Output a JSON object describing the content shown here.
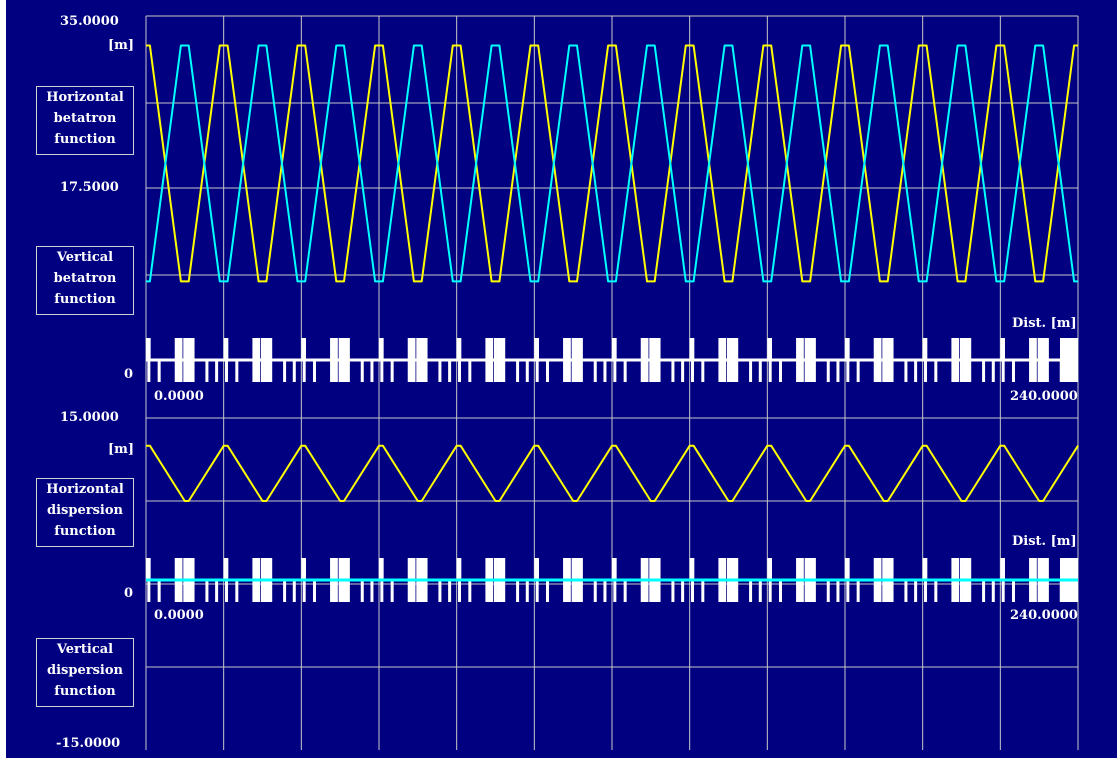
{
  "colors": {
    "background": "#000080",
    "grid": "#c8c8c8",
    "horizontal_series": "#ffff00",
    "vertical_series": "#00ffff",
    "lattice": "#ffffff"
  },
  "chart_data": [
    {
      "type": "line",
      "panel": "betatron",
      "ylim": [
        0,
        35
      ],
      "xlim": [
        0,
        240
      ],
      "y_ticks": {
        "top": "35.0000",
        "mid": "17.5000",
        "bottom": "0"
      },
      "unit": "[m]",
      "x_axis_label": "Dist. [m]",
      "x_ticks": {
        "start": "0.0000",
        "end": "240.0000"
      },
      "legend": [
        {
          "text": "Horizontal\nbetatron\nfunction",
          "color": "#ffff00"
        },
        {
          "text": "Vertical\nbetatron\nfunction",
          "color": "#00ffff"
        }
      ],
      "cells": 12,
      "cell_length": 20,
      "series": [
        {
          "id": "beta_x",
          "color": "#ffff00",
          "x": [
            0,
            1,
            5,
            9,
            10,
            11,
            15,
            19,
            20
          ],
          "y": [
            32,
            32,
            20,
            8,
            8,
            8,
            20,
            32,
            32
          ]
        },
        {
          "id": "beta_y",
          "color": "#00ffff",
          "x": [
            0,
            1,
            5,
            9,
            10,
            11,
            15,
            19,
            20
          ],
          "y": [
            8,
            8,
            20,
            32,
            32,
            32,
            20,
            8,
            8
          ]
        }
      ]
    },
    {
      "type": "line",
      "panel": "dispersion",
      "ylim": [
        -15,
        15
      ],
      "xlim": [
        0,
        240
      ],
      "y_ticks": {
        "top": "15.0000",
        "bottom": "-15.0000"
      },
      "unit": "[m]",
      "x_axis_label": "Dist. [m]",
      "x_ticks": {
        "start": "0.0000",
        "end": "240.0000"
      },
      "legend": [
        {
          "text": "Horizontal\ndispersion\nfunction",
          "color": "#ffff00"
        },
        {
          "text": "Vertical\ndispersion\nfunction",
          "color": "#00ffff"
        }
      ],
      "series": [
        {
          "id": "eta_x",
          "color": "#ffff00",
          "x": [
            0,
            1,
            10,
            11,
            20
          ],
          "y": [
            12.5,
            12.5,
            7.5,
            7.5,
            12.5
          ]
        },
        {
          "id": "eta_y",
          "color": "#00ffff",
          "x": [
            0,
            240
          ],
          "y": [
            0,
            0
          ]
        }
      ]
    }
  ]
}
